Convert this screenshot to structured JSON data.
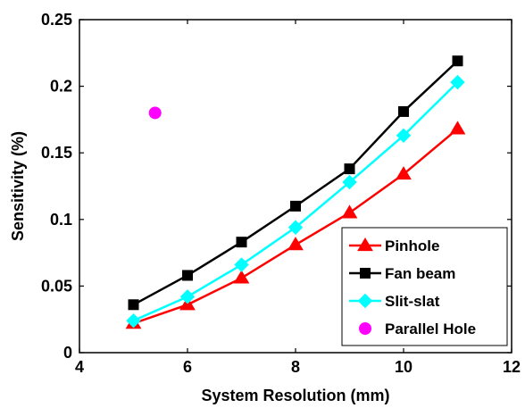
{
  "chart_data": {
    "type": "line",
    "title": "",
    "xlabel": "System Resolution (mm)",
    "ylabel": "Sensitivity (%)",
    "xlim": [
      4,
      12
    ],
    "ylim": [
      0,
      0.25
    ],
    "x_ticks": [
      4,
      6,
      8,
      10,
      12
    ],
    "y_ticks": [
      0,
      0.05,
      0.1,
      0.15,
      0.2,
      0.25
    ],
    "x_tick_labels": [
      "4",
      "6",
      "8",
      "10",
      "12"
    ],
    "y_tick_labels": [
      "0",
      "0.05",
      "0.1",
      "0.15",
      "0.2",
      "0.25"
    ],
    "grid": false,
    "legend_position": "bottom-right",
    "series": [
      {
        "name": "Pinhole",
        "color": "#ff0000",
        "marker": "triangle",
        "line": true,
        "x": [
          5,
          6,
          7,
          8,
          9,
          10,
          11
        ],
        "y": [
          0.022,
          0.036,
          0.056,
          0.081,
          0.105,
          0.134,
          0.168
        ]
      },
      {
        "name": "Fan beam",
        "color": "#000000",
        "marker": "square",
        "line": true,
        "x": [
          5,
          6,
          7,
          8,
          9,
          10,
          11
        ],
        "y": [
          0.036,
          0.058,
          0.083,
          0.11,
          0.138,
          0.181,
          0.219
        ]
      },
      {
        "name": "Slit-slat",
        "color": "#00ffff",
        "marker": "diamond",
        "line": true,
        "x": [
          5,
          6,
          7,
          8,
          9,
          10,
          11
        ],
        "y": [
          0.024,
          0.042,
          0.066,
          0.094,
          0.128,
          0.163,
          0.203
        ]
      },
      {
        "name": "Parallel Hole",
        "color": "#ff00ff",
        "marker": "circle",
        "line": false,
        "x": [
          5.4
        ],
        "y": [
          0.18
        ]
      }
    ]
  }
}
